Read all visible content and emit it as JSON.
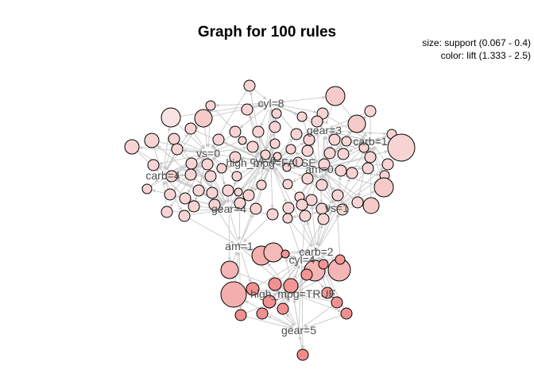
{
  "title": "Graph for 100 rules",
  "legend": {
    "size": "size: support (0.067 - 0.4)",
    "color": "color: lift (1.333 - 2.5)"
  },
  "item_labels": [
    "cyl=8",
    "gear=3",
    "carb=1",
    "vs=0",
    "high_mpg=FALSE",
    "cyl=6",
    "am=0",
    "carb=4",
    "gear=4",
    "vs=1",
    "am=1",
    "carb=2",
    "cyl=4",
    "high_mpg=TRUE",
    "gear=5"
  ],
  "colors": {
    "edge": "#c8c8c8",
    "node_stroke": "#000000",
    "rule_low_lift": "#f9e9e8",
    "rule_high_lift": "#f08080"
  }
}
